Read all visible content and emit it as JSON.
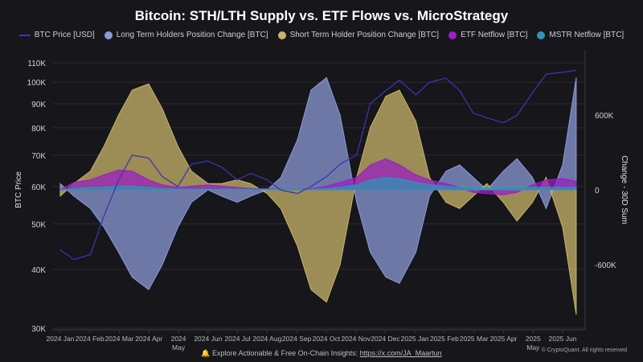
{
  "chart_data": {
    "type": "area",
    "title": "Bitcoin: STH/LTH Supply vs. ETF Flows vs. MicroStrategy",
    "ylabel_left": "BTC Price",
    "ylabel_right": "Change - 30D Sum",
    "left_axis": {
      "scale": "log",
      "range": [
        30000,
        120000
      ],
      "ticks": [
        30000,
        40000,
        50000,
        60000,
        70000,
        80000,
        90000,
        100000,
        110000
      ],
      "tick_labels": [
        "30K",
        "40K",
        "50K",
        "60K",
        "70K",
        "80K",
        "90K",
        "100K",
        "110K"
      ]
    },
    "right_axis": {
      "range": [
        -1300000,
        1300000
      ],
      "ticks": [
        -600000,
        0,
        600000
      ],
      "tick_labels": [
        "-600K",
        "0",
        "600K"
      ]
    },
    "x_tick_labels": [
      "2024 Jan",
      "2024 Feb",
      "2024 Mar",
      "2024 Apr",
      "2024 May",
      "2024 Jun",
      "2024 Jul",
      "2024 Aug",
      "2024 Sep",
      "2024 Oct",
      "2024 Nov",
      "2024 Dec",
      "2025 Jan",
      "2025 Feb",
      "2025 Mar",
      "2025 Apr",
      "2025 May",
      "2025 Jun"
    ],
    "grid": true,
    "legend_position": "top",
    "x": [
      "2024-01-01",
      "2024-01-15",
      "2024-02-01",
      "2024-02-15",
      "2024-03-01",
      "2024-03-15",
      "2024-04-01",
      "2024-04-15",
      "2024-05-01",
      "2024-05-15",
      "2024-06-01",
      "2024-06-15",
      "2024-07-01",
      "2024-07-15",
      "2024-08-01",
      "2024-08-15",
      "2024-09-01",
      "2024-09-15",
      "2024-10-01",
      "2024-10-15",
      "2024-11-01",
      "2024-11-15",
      "2024-12-01",
      "2024-12-15",
      "2025-01-01",
      "2025-01-15",
      "2025-02-01",
      "2025-02-15",
      "2025-03-01",
      "2025-03-15",
      "2025-04-01",
      "2025-04-15",
      "2025-05-01",
      "2025-05-15",
      "2025-06-01",
      "2025-06-15"
    ],
    "series": [
      {
        "name": "BTC Price [USD]",
        "axis": "left",
        "kind": "line",
        "color": "#3f33b0",
        "values": [
          44000,
          42000,
          43000,
          52000,
          62000,
          70000,
          69000,
          63000,
          60000,
          67000,
          68000,
          66000,
          62000,
          64000,
          62000,
          59000,
          58000,
          60000,
          63000,
          67000,
          70000,
          90000,
          96000,
          101000,
          94000,
          100000,
          102000,
          96000,
          86000,
          84000,
          82000,
          85000,
          95000,
          104000,
          105000,
          106000
        ]
      },
      {
        "name": "Long Term Holders Position Change [BTC]",
        "axis": "right",
        "kind": "area",
        "color": "#8c9ad6",
        "values": [
          50000,
          -50000,
          -150000,
          -300000,
          -500000,
          -700000,
          -800000,
          -600000,
          -300000,
          -100000,
          0,
          -50000,
          -100000,
          -50000,
          0,
          100000,
          400000,
          800000,
          900000,
          600000,
          -100000,
          -500000,
          -700000,
          -750000,
          -500000,
          -50000,
          150000,
          200000,
          100000,
          0,
          150000,
          250000,
          100000,
          -150000,
          200000,
          900000
        ]
      },
      {
        "name": "Short Term Holder Position Change [BTC]",
        "axis": "right",
        "kind": "area",
        "color": "#c9b46a",
        "values": [
          -50000,
          50000,
          150000,
          350000,
          600000,
          800000,
          850000,
          650000,
          350000,
          150000,
          50000,
          50000,
          80000,
          50000,
          -30000,
          -150000,
          -450000,
          -800000,
          -900000,
          -600000,
          100000,
          500000,
          750000,
          800000,
          550000,
          100000,
          -100000,
          -150000,
          -50000,
          50000,
          -100000,
          -250000,
          -100000,
          100000,
          -300000,
          -1000000
        ]
      },
      {
        "name": "ETF Netflow [BTC]",
        "axis": "right",
        "kind": "area",
        "color": "#9a1fc0",
        "values": [
          0,
          60000,
          80000,
          120000,
          160000,
          150000,
          80000,
          40000,
          20000,
          30000,
          40000,
          30000,
          20000,
          10000,
          10000,
          5000,
          5000,
          10000,
          30000,
          60000,
          100000,
          200000,
          250000,
          200000,
          120000,
          80000,
          50000,
          20000,
          -20000,
          -30000,
          -40000,
          -20000,
          40000,
          80000,
          90000,
          70000
        ]
      },
      {
        "name": "MSTR Netflow [BTC]",
        "axis": "right",
        "kind": "area",
        "color": "#2f93b8",
        "values": [
          0,
          10000,
          20000,
          20000,
          30000,
          30000,
          20000,
          10000,
          5000,
          5000,
          5000,
          5000,
          5000,
          5000,
          5000,
          5000,
          5000,
          5000,
          10000,
          20000,
          40000,
          80000,
          100000,
          90000,
          60000,
          40000,
          30000,
          20000,
          15000,
          15000,
          15000,
          20000,
          20000,
          20000,
          20000,
          20000
        ]
      }
    ]
  },
  "footer": {
    "text": "Explore Actionable & Free On-Chain Insights: ",
    "link": "https://x.com/JA_Maartun",
    "copyright": "© CryptoQuant. All rights reserved"
  }
}
